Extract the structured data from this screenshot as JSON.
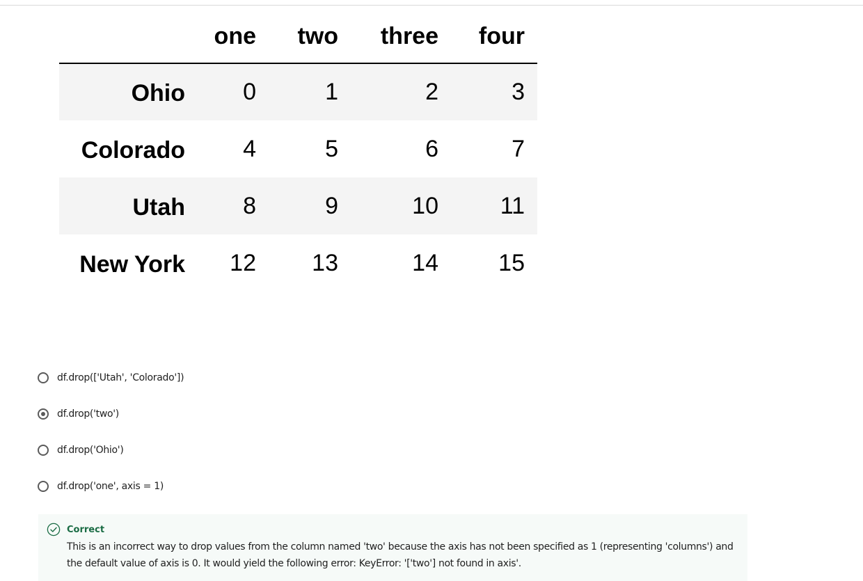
{
  "dataframe": {
    "columns": [
      "one",
      "two",
      "three",
      "four"
    ],
    "rows": [
      {
        "index": "Ohio",
        "values": [
          "0",
          "1",
          "2",
          "3"
        ]
      },
      {
        "index": "Colorado",
        "values": [
          "4",
          "5",
          "6",
          "7"
        ]
      },
      {
        "index": "Utah",
        "values": [
          "8",
          "9",
          "10",
          "11"
        ]
      },
      {
        "index": "New York",
        "values": [
          "12",
          "13",
          "14",
          "15"
        ]
      }
    ]
  },
  "quiz": {
    "options": [
      {
        "label": "df.drop(['Utah', 'Colorado'])",
        "selected": false
      },
      {
        "label": "df.drop('two')",
        "selected": true
      },
      {
        "label": "df.drop('Ohio')",
        "selected": false
      },
      {
        "label": "df.drop('one', axis = 1)",
        "selected": false
      }
    ],
    "feedback": {
      "status": "Correct",
      "icon": "check-circle-icon",
      "status_color": "#1a6c44",
      "text": "This is an incorrect way to drop values from the column named 'two' because the axis has not been specified as 1 (representing 'columns') and the default value of axis is 0.  It would yield the following error: KeyError: '['two'] not found in axis'."
    }
  }
}
